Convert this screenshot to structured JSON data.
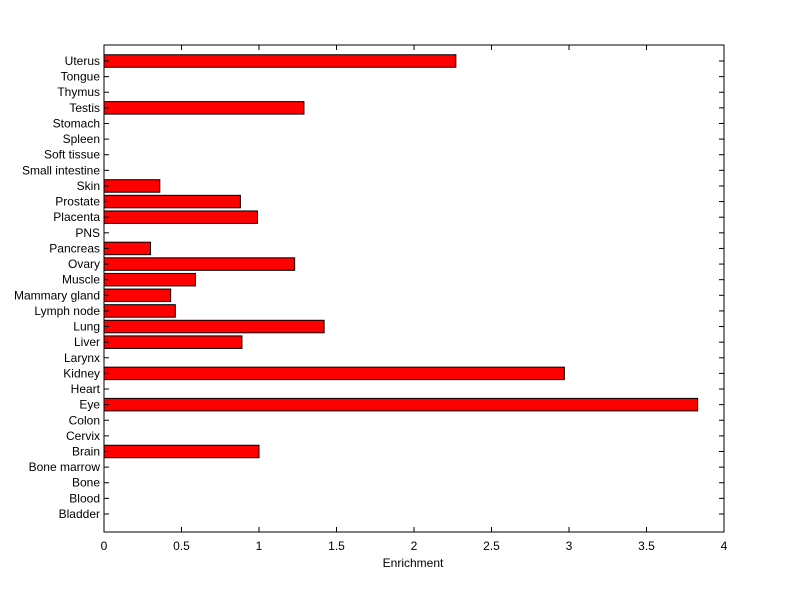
{
  "chart_data": {
    "type": "bar",
    "orientation": "horizontal",
    "categories": [
      "Uterus",
      "Tongue",
      "Thymus",
      "Testis",
      "Stomach",
      "Spleen",
      "Soft tissue",
      "Small intestine",
      "Skin",
      "Prostate",
      "Placenta",
      "PNS",
      "Pancreas",
      "Ovary",
      "Muscle",
      "Mammary gland",
      "Lymph node",
      "Lung",
      "Liver",
      "Larynx",
      "Kidney",
      "Heart",
      "Eye",
      "Colon",
      "Cervix",
      "Brain",
      "Bone marrow",
      "Bone",
      "Blood",
      "Bladder"
    ],
    "values": [
      2.27,
      0,
      0,
      1.29,
      0,
      0,
      0,
      0,
      0.36,
      0.88,
      0.99,
      0,
      0.3,
      1.23,
      0.59,
      0.43,
      0.46,
      1.42,
      0.89,
      0,
      2.97,
      0,
      3.83,
      0,
      0,
      1.0,
      0,
      0,
      0,
      0
    ],
    "xlabel": "Enrichment",
    "ylabel": "",
    "title": "",
    "xlim": [
      0,
      4
    ],
    "xticks": [
      "0",
      "0.5",
      "1",
      "1.5",
      "2",
      "2.5",
      "3",
      "3.5",
      "4"
    ],
    "grid": false,
    "bar_color": "#ff0000",
    "edge_color": "#000000"
  }
}
